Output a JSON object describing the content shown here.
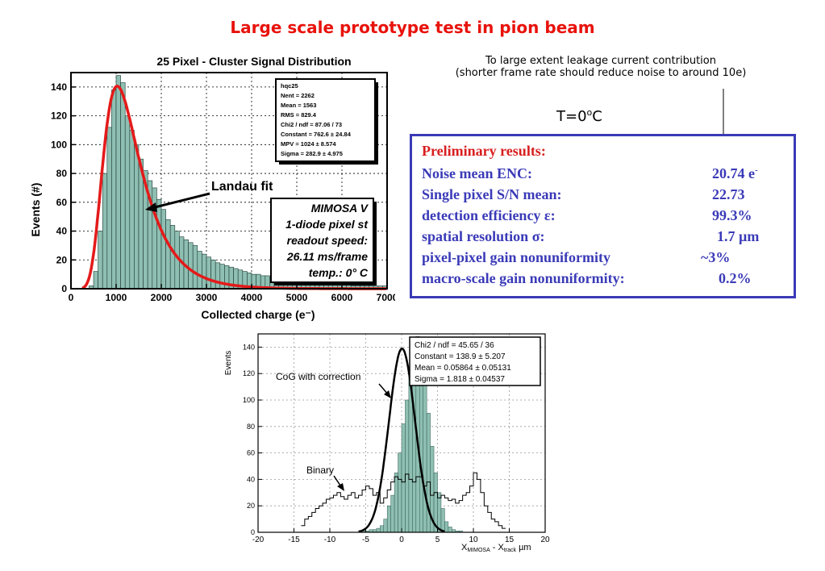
{
  "slide": {
    "title": "Large scale prototype test in pion beam",
    "note_line1": "To large extent leakage current contribution",
    "note_line2": "(shorter frame rate should reduce noise to around 10e)",
    "temperature_label": "T=0",
    "temperature_sup": "o",
    "temperature_unit": "C"
  },
  "results": {
    "heading": "Preliminary results:",
    "rows": [
      {
        "label": "Noise mean ENC:",
        "value": "20.74 e",
        "sup": "-"
      },
      {
        "label": "Single pixel S/N mean:",
        "value": "22.73",
        "sup": ""
      },
      {
        "label": "detection efficiency ε:",
        "value": "99.3%",
        "sup": ""
      },
      {
        "label": "spatial resolution σ:",
        "value": "1.7 µm",
        "sup": ""
      },
      {
        "label": "pixel-pixel gain nonuniformity",
        "value": "~3%",
        "sup": ""
      },
      {
        "label": "macro-scale  gain nonuniformity:",
        "value": "0.2%",
        "sup": ""
      }
    ]
  },
  "colors": {
    "title_red": "#e8120c",
    "results_blue": "#3a3ab8",
    "results_head_red": "#d81e1e",
    "hist_fill": "#8fbfb2",
    "fit_red": "#e41a1a"
  },
  "chart_data": [
    {
      "type": "bar",
      "title": "25 Pixel - Cluster Signal Distribution",
      "xlabel": "Collected charge (e⁻)",
      "ylabel": "Events (#)",
      "xlim": [
        0,
        7000
      ],
      "ylim": [
        0,
        150
      ],
      "xticks": [
        "0",
        "1000",
        "2000",
        "3000",
        "4000",
        "5000",
        "6000",
        "7000"
      ],
      "yticks": [
        "0",
        "20",
        "40",
        "60",
        "80",
        "100",
        "120",
        "140"
      ],
      "grid": true,
      "bin_width": 100,
      "bin_start": 0,
      "values": [
        0,
        0,
        0,
        0,
        2,
        12,
        40,
        80,
        112,
        138,
        148,
        143,
        120,
        110,
        100,
        90,
        82,
        75,
        70,
        62,
        55,
        48,
        44,
        40,
        36,
        34,
        32,
        30,
        26,
        24,
        22,
        20,
        18,
        17,
        16,
        15,
        14,
        13,
        12,
        11,
        10,
        10,
        9,
        9,
        8,
        8,
        7,
        7,
        6,
        6,
        6,
        5,
        5,
        5,
        4,
        4,
        4,
        3,
        3,
        3,
        3,
        3,
        2,
        2,
        2,
        2,
        2,
        2,
        2,
        2
      ],
      "fit_label": "Landau fit",
      "fit": {
        "type": "landau",
        "mpv": 1024,
        "sigma": 282.9,
        "constant": 762.6
      },
      "stats_box": [
        "hqc25",
        "Nent = 2262",
        "Mean =   1563",
        "RMS   =  829.4",
        "Chi2 / ndf = 87.06 / 73",
        "Constant = 762.6 ± 24.84",
        "MPV      =  1024 ± 8.574",
        "Sigma    =  282.9 ± 4.975"
      ],
      "info_box": [
        "MIMOSA V",
        "1-diode pixel st",
        "readout speed:",
        "26.11 ms/frame",
        "temp.: 0° C"
      ]
    },
    {
      "type": "bar",
      "title": "",
      "xlabel": "X",
      "xlabel_sub1": "MIMOSA",
      "xlabel_mid": " - X",
      "xlabel_sub2": "track",
      "xlabel_unit": " µm",
      "ylabel": "Events",
      "xlim": [
        -20,
        20
      ],
      "ylim": [
        0,
        150
      ],
      "xticks": [
        "-20",
        "-15",
        "-10",
        "-5",
        "0",
        "5",
        "10",
        "15",
        "20"
      ],
      "yticks": [
        "0",
        "20",
        "40",
        "60",
        "80",
        "100",
        "120",
        "140"
      ],
      "grid": true,
      "bin_width": 0.5,
      "bin_start": -14,
      "series": [
        {
          "name": "CoG with correction",
          "style": "filled",
          "values": [
            0,
            0,
            0,
            0,
            0,
            0,
            0,
            0,
            0,
            0,
            0,
            0,
            0,
            0,
            0,
            0,
            0,
            1,
            1,
            2,
            2,
            3,
            5,
            10,
            20,
            28,
            45,
            60,
            82,
            100,
            125,
            140,
            148,
            135,
            115,
            90,
            65,
            45,
            30,
            18,
            8,
            4,
            2,
            1,
            1,
            0,
            0,
            0,
            0,
            0,
            0,
            0,
            0,
            0,
            0,
            0,
            0
          ]
        },
        {
          "name": "Binary",
          "style": "step",
          "values": [
            5,
            10,
            12,
            15,
            18,
            20,
            22,
            25,
            26,
            28,
            30,
            27,
            25,
            28,
            30,
            26,
            28,
            32,
            35,
            33,
            28,
            30,
            22,
            26,
            32,
            38,
            42,
            40,
            38,
            44,
            40,
            38,
            42,
            42,
            35,
            38,
            28,
            30,
            26,
            28,
            26,
            24,
            25,
            22,
            24,
            28,
            30,
            35,
            45,
            40,
            30,
            20,
            15,
            10,
            8,
            5,
            3
          ]
        }
      ],
      "fit": {
        "type": "gauss",
        "mean": 0.05864,
        "sigma": 1.818,
        "constant": 138.9
      },
      "stats_box": [
        "Chi2 / ndf = 45.65 / 36",
        "Constant = 138.9 ± 5.207",
        "Mean    = 0.05864 ± 0.05131",
        "Sigma    = 1.818 ± 0.04537"
      ]
    }
  ]
}
